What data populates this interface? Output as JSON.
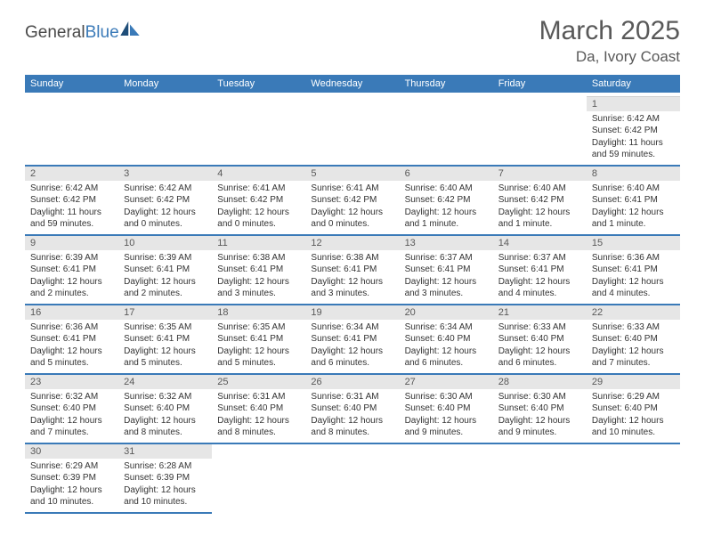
{
  "brand": {
    "name1": "General",
    "name2": "Blue"
  },
  "title": "March 2025",
  "location": "Da, Ivory Coast",
  "colors": {
    "header_bg": "#3a7ab8",
    "header_text": "#ffffff",
    "daynum_bg": "#e6e6e6",
    "text": "#595959",
    "row_divider": "#3a7ab8"
  },
  "dayNames": [
    "Sunday",
    "Monday",
    "Tuesday",
    "Wednesday",
    "Thursday",
    "Friday",
    "Saturday"
  ],
  "weeks": [
    [
      null,
      null,
      null,
      null,
      null,
      null,
      {
        "n": "1",
        "sr": "Sunrise: 6:42 AM",
        "ss": "Sunset: 6:42 PM",
        "dl": "Daylight: 11 hours and 59 minutes."
      }
    ],
    [
      {
        "n": "2",
        "sr": "Sunrise: 6:42 AM",
        "ss": "Sunset: 6:42 PM",
        "dl": "Daylight: 11 hours and 59 minutes."
      },
      {
        "n": "3",
        "sr": "Sunrise: 6:42 AM",
        "ss": "Sunset: 6:42 PM",
        "dl": "Daylight: 12 hours and 0 minutes."
      },
      {
        "n": "4",
        "sr": "Sunrise: 6:41 AM",
        "ss": "Sunset: 6:42 PM",
        "dl": "Daylight: 12 hours and 0 minutes."
      },
      {
        "n": "5",
        "sr": "Sunrise: 6:41 AM",
        "ss": "Sunset: 6:42 PM",
        "dl": "Daylight: 12 hours and 0 minutes."
      },
      {
        "n": "6",
        "sr": "Sunrise: 6:40 AM",
        "ss": "Sunset: 6:42 PM",
        "dl": "Daylight: 12 hours and 1 minute."
      },
      {
        "n": "7",
        "sr": "Sunrise: 6:40 AM",
        "ss": "Sunset: 6:42 PM",
        "dl": "Daylight: 12 hours and 1 minute."
      },
      {
        "n": "8",
        "sr": "Sunrise: 6:40 AM",
        "ss": "Sunset: 6:41 PM",
        "dl": "Daylight: 12 hours and 1 minute."
      }
    ],
    [
      {
        "n": "9",
        "sr": "Sunrise: 6:39 AM",
        "ss": "Sunset: 6:41 PM",
        "dl": "Daylight: 12 hours and 2 minutes."
      },
      {
        "n": "10",
        "sr": "Sunrise: 6:39 AM",
        "ss": "Sunset: 6:41 PM",
        "dl": "Daylight: 12 hours and 2 minutes."
      },
      {
        "n": "11",
        "sr": "Sunrise: 6:38 AM",
        "ss": "Sunset: 6:41 PM",
        "dl": "Daylight: 12 hours and 3 minutes."
      },
      {
        "n": "12",
        "sr": "Sunrise: 6:38 AM",
        "ss": "Sunset: 6:41 PM",
        "dl": "Daylight: 12 hours and 3 minutes."
      },
      {
        "n": "13",
        "sr": "Sunrise: 6:37 AM",
        "ss": "Sunset: 6:41 PM",
        "dl": "Daylight: 12 hours and 3 minutes."
      },
      {
        "n": "14",
        "sr": "Sunrise: 6:37 AM",
        "ss": "Sunset: 6:41 PM",
        "dl": "Daylight: 12 hours and 4 minutes."
      },
      {
        "n": "15",
        "sr": "Sunrise: 6:36 AM",
        "ss": "Sunset: 6:41 PM",
        "dl": "Daylight: 12 hours and 4 minutes."
      }
    ],
    [
      {
        "n": "16",
        "sr": "Sunrise: 6:36 AM",
        "ss": "Sunset: 6:41 PM",
        "dl": "Daylight: 12 hours and 5 minutes."
      },
      {
        "n": "17",
        "sr": "Sunrise: 6:35 AM",
        "ss": "Sunset: 6:41 PM",
        "dl": "Daylight: 12 hours and 5 minutes."
      },
      {
        "n": "18",
        "sr": "Sunrise: 6:35 AM",
        "ss": "Sunset: 6:41 PM",
        "dl": "Daylight: 12 hours and 5 minutes."
      },
      {
        "n": "19",
        "sr": "Sunrise: 6:34 AM",
        "ss": "Sunset: 6:41 PM",
        "dl": "Daylight: 12 hours and 6 minutes."
      },
      {
        "n": "20",
        "sr": "Sunrise: 6:34 AM",
        "ss": "Sunset: 6:40 PM",
        "dl": "Daylight: 12 hours and 6 minutes."
      },
      {
        "n": "21",
        "sr": "Sunrise: 6:33 AM",
        "ss": "Sunset: 6:40 PM",
        "dl": "Daylight: 12 hours and 6 minutes."
      },
      {
        "n": "22",
        "sr": "Sunrise: 6:33 AM",
        "ss": "Sunset: 6:40 PM",
        "dl": "Daylight: 12 hours and 7 minutes."
      }
    ],
    [
      {
        "n": "23",
        "sr": "Sunrise: 6:32 AM",
        "ss": "Sunset: 6:40 PM",
        "dl": "Daylight: 12 hours and 7 minutes."
      },
      {
        "n": "24",
        "sr": "Sunrise: 6:32 AM",
        "ss": "Sunset: 6:40 PM",
        "dl": "Daylight: 12 hours and 8 minutes."
      },
      {
        "n": "25",
        "sr": "Sunrise: 6:31 AM",
        "ss": "Sunset: 6:40 PM",
        "dl": "Daylight: 12 hours and 8 minutes."
      },
      {
        "n": "26",
        "sr": "Sunrise: 6:31 AM",
        "ss": "Sunset: 6:40 PM",
        "dl": "Daylight: 12 hours and 8 minutes."
      },
      {
        "n": "27",
        "sr": "Sunrise: 6:30 AM",
        "ss": "Sunset: 6:40 PM",
        "dl": "Daylight: 12 hours and 9 minutes."
      },
      {
        "n": "28",
        "sr": "Sunrise: 6:30 AM",
        "ss": "Sunset: 6:40 PM",
        "dl": "Daylight: 12 hours and 9 minutes."
      },
      {
        "n": "29",
        "sr": "Sunrise: 6:29 AM",
        "ss": "Sunset: 6:40 PM",
        "dl": "Daylight: 12 hours and 10 minutes."
      }
    ],
    [
      {
        "n": "30",
        "sr": "Sunrise: 6:29 AM",
        "ss": "Sunset: 6:39 PM",
        "dl": "Daylight: 12 hours and 10 minutes."
      },
      {
        "n": "31",
        "sr": "Sunrise: 6:28 AM",
        "ss": "Sunset: 6:39 PM",
        "dl": "Daylight: 12 hours and 10 minutes."
      },
      null,
      null,
      null,
      null,
      null
    ]
  ]
}
